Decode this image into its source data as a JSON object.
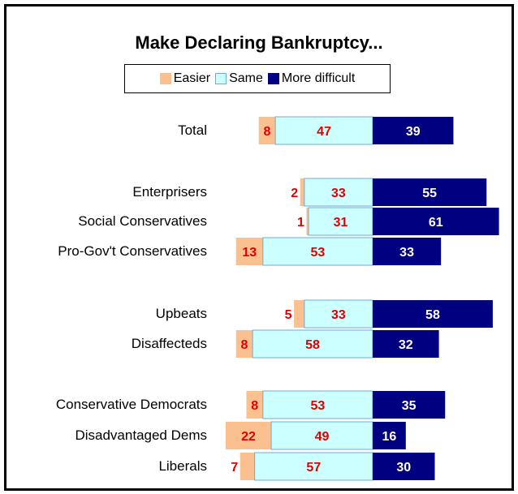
{
  "chart_data": {
    "type": "bar",
    "orientation": "horizontal",
    "stacked": true,
    "title": "Make Declaring Bankruptcy...",
    "legend_position": "top",
    "categories": [
      "Total",
      "Enterprisers",
      "Social Conservatives",
      "Pro-Gov't Conservatives",
      "Upbeats",
      "Disaffecteds",
      "Conservative Democrats",
      "Disadvantaged Dems",
      "Liberals"
    ],
    "series": [
      {
        "name": "Easier",
        "color": "#FAC090",
        "values": [
          8,
          2,
          1,
          13,
          5,
          8,
          8,
          22,
          7
        ]
      },
      {
        "name": "Same",
        "color": "#CCFFFF",
        "values": [
          47,
          33,
          31,
          53,
          33,
          58,
          53,
          49,
          57
        ]
      },
      {
        "name": "More difficult",
        "color": "#000080",
        "values": [
          39,
          55,
          61,
          33,
          58,
          32,
          35,
          16,
          30
        ]
      }
    ],
    "label_colors": {
      "easier": "#E00000",
      "same": "#E00000",
      "more_difficult": "#FFFFFF"
    }
  }
}
